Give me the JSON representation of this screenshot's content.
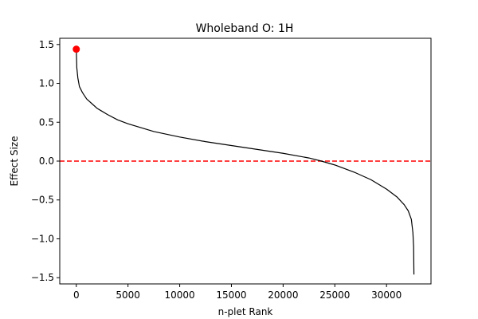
{
  "chart_data": {
    "type": "line",
    "title": "Wholeband O: 1H",
    "xlabel": "n-plet Rank",
    "ylabel": "Effect Size",
    "xlim": [
      -1600,
      34300
    ],
    "ylim": [
      -1.58,
      1.58
    ],
    "xticks": [
      0,
      5000,
      10000,
      15000,
      20000,
      25000,
      30000
    ],
    "xtick_labels": [
      "0",
      "5000",
      "10000",
      "15000",
      "20000",
      "25000",
      "30000"
    ],
    "yticks": [
      1.5,
      1.0,
      0.5,
      0.0,
      -0.5,
      -1.0,
      -1.5
    ],
    "ytick_labels": [
      "1.5",
      "1.0",
      "0.5",
      "0.0",
      "−0.5",
      "−1.0",
      "−1.5"
    ],
    "grid": false,
    "series": [
      {
        "color": "#000000",
        "style": "solid",
        "x": [
          0,
          50,
          150,
          300,
          600,
          1000,
          1500,
          2000,
          3000,
          4000,
          5000,
          7500,
          10000,
          12500,
          15000,
          17500,
          20000,
          22500,
          23700,
          25000,
          27000,
          28500,
          30000,
          31000,
          31700,
          32100,
          32400,
          32550,
          32620,
          32650
        ],
        "y": [
          1.44,
          1.2,
          1.07,
          0.96,
          0.88,
          0.8,
          0.74,
          0.68,
          0.6,
          0.53,
          0.48,
          0.38,
          0.31,
          0.25,
          0.2,
          0.15,
          0.1,
          0.04,
          0.0,
          -0.05,
          -0.15,
          -0.24,
          -0.36,
          -0.46,
          -0.56,
          -0.64,
          -0.75,
          -0.92,
          -1.1,
          -1.46
        ]
      }
    ],
    "highlight_point": {
      "x": 0,
      "y": 1.44,
      "color": "#ff0000"
    },
    "reference_line": {
      "y": 0.0,
      "color": "#ff0000",
      "style": "dashed"
    }
  }
}
